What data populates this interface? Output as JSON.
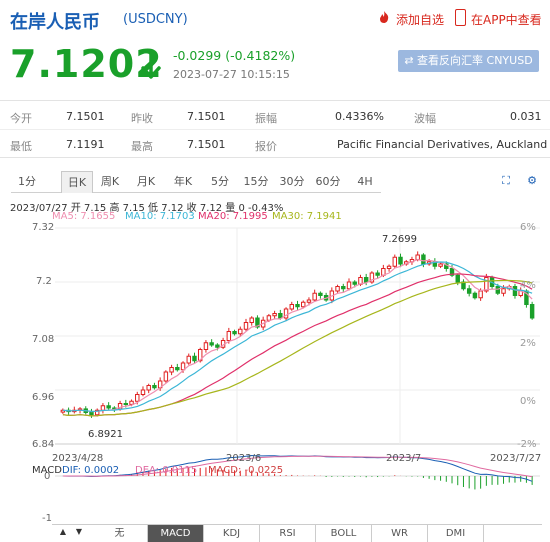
{
  "header": {
    "name": "在岸人民币",
    "code": "(USDCNY)",
    "fav": "添加自选",
    "app": "在APP中查看"
  },
  "price": {
    "value": "7.1202",
    "change": "-0.0299 (-0.4182%)",
    "time": "2023-07-27 10:15:15",
    "compare_btn": "查看反向汇率 CNYUSD"
  },
  "quote": {
    "row1": [
      {
        "label": "今开",
        "value": "7.1501"
      },
      {
        "label": "昨收",
        "value": "7.1501"
      },
      {
        "label": "振幅",
        "value": "0.4336%"
      },
      {
        "label": "波幅",
        "value": "0.031"
      }
    ],
    "row2": [
      {
        "label": "最低",
        "value": "7.1191"
      },
      {
        "label": "最高",
        "value": "7.1501"
      },
      {
        "label": "报价",
        "value": "Pacific Financial Derivatives, Auckland"
      }
    ]
  },
  "tabs": [
    "1分",
    "日K",
    "周K",
    "月K",
    "年K",
    "5分",
    "15分",
    "30分",
    "60分",
    "4H"
  ],
  "active_tab": "日K",
  "chart_info": {
    "line": "2023/07/27 开 7.15 高 7.15 低 7.12 收 7.12 量 0 -0.43%",
    "ma5": "MA5: 7.1655",
    "ma10": "MA10: 7.1703",
    "ma20": "MA20: 7.1995",
    "ma30": "MA30: 7.1941"
  },
  "macd_info": {
    "title": "MACD",
    "dif": "DIF: 0.0002",
    "dea": "DEA: 0.0115",
    "macd": "MACD: -0.0225"
  },
  "bottom_tabs": [
    "无",
    "MACD",
    "KDJ",
    "RSI",
    "BOLL",
    "WR",
    "DMI"
  ],
  "colors": {
    "up": "#e02020",
    "down": "#1aa02a",
    "ma5": "#ef8fb0",
    "ma10": "#3bb6d6",
    "ma20": "#e0306a",
    "ma30": "#a7b61c"
  },
  "chart_data": {
    "type": "candlestick",
    "title": "",
    "y_ticks": [
      "7.32",
      "7.2",
      "7.08",
      "6.96",
      "6.84"
    ],
    "pct_ticks": [
      "6%",
      "4%",
      "2%",
      "0%",
      "-2%"
    ],
    "x_ticks": [
      "2023/4/28",
      "2023/6",
      "2023/7",
      "2023/7/27"
    ],
    "ylim": [
      6.84,
      7.32
    ],
    "annotations": {
      "high": "7.2699",
      "low": "6.8921"
    },
    "macd_ticks": [
      "0",
      "-1"
    ],
    "closes": [
      6.915,
      6.912,
      6.915,
      6.918,
      6.91,
      6.905,
      6.915,
      6.925,
      6.92,
      6.918,
      6.93,
      6.928,
      6.935,
      6.95,
      6.96,
      6.97,
      6.965,
      6.98,
      7.0,
      7.01,
      7.005,
      7.02,
      7.035,
      7.025,
      7.05,
      7.065,
      7.06,
      7.055,
      7.07,
      7.09,
      7.085,
      7.095,
      7.11,
      7.12,
      7.1,
      7.115,
      7.125,
      7.13,
      7.12,
      7.14,
      7.15,
      7.145,
      7.155,
      7.16,
      7.175,
      7.17,
      7.16,
      7.18,
      7.19,
      7.185,
      7.2,
      7.195,
      7.21,
      7.2,
      7.22,
      7.215,
      7.23,
      7.235,
      7.255,
      7.24,
      7.245,
      7.25,
      7.26,
      7.24,
      7.245,
      7.235,
      7.24,
      7.23,
      7.215,
      7.2,
      7.185,
      7.175,
      7.165,
      7.18,
      7.21,
      7.19,
      7.175,
      7.185,
      7.19,
      7.17,
      7.18,
      7.15,
      7.12
    ]
  }
}
